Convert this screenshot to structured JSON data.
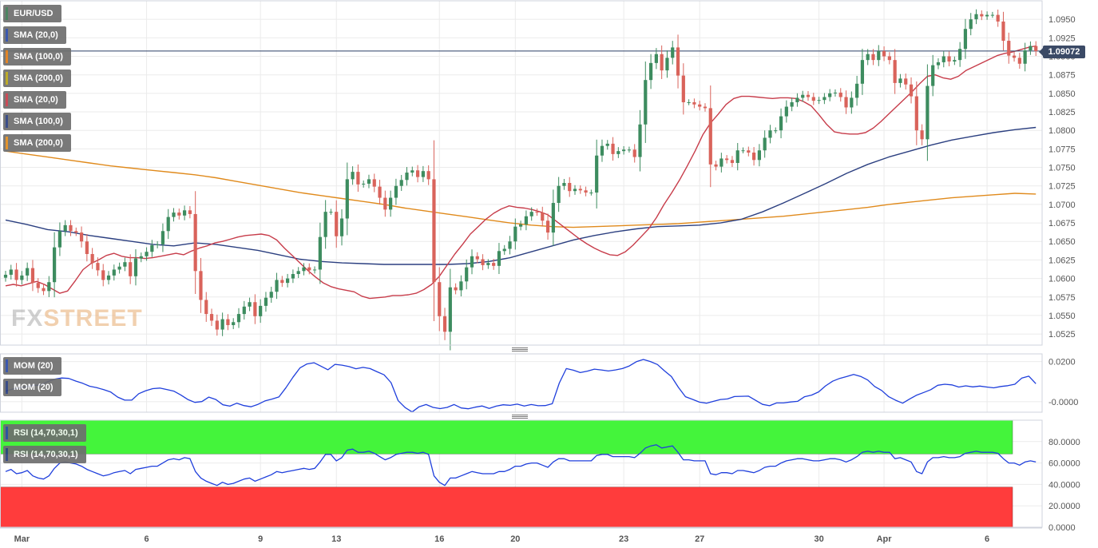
{
  "chart_data": {
    "type": "candlestick",
    "instrument": "EUR/USD",
    "last_price": "1.09072",
    "watermark": "FXSTREET",
    "x_tick_labels": [
      {
        "i": 3,
        "label": "Mar"
      },
      {
        "i": 26,
        "label": "6"
      },
      {
        "i": 47,
        "label": "9"
      },
      {
        "i": 61,
        "label": "13"
      },
      {
        "i": 80,
        "label": "16"
      },
      {
        "i": 94,
        "label": "20"
      },
      {
        "i": 114,
        "label": "23"
      },
      {
        "i": 128,
        "label": "27"
      },
      {
        "i": 150,
        "label": "30"
      },
      {
        "i": 162,
        "label": "Apr"
      },
      {
        "i": 181,
        "label": "6"
      }
    ],
    "price_panel": {
      "ylim": [
        1.051,
        1.0975
      ],
      "y_ticks": [
        "1.0525",
        "1.0550",
        "1.0575",
        "1.0600",
        "1.0625",
        "1.0650",
        "1.0675",
        "1.0700",
        "1.0725",
        "1.0750",
        "1.0775",
        "1.0800",
        "1.0825",
        "1.0850",
        "1.0875",
        "1.0900",
        "1.0925",
        "1.0950"
      ],
      "legend": [
        {
          "label": "EUR/USD",
          "color": "#3d7a55"
        },
        {
          "label": "SMA (20,0)",
          "color": "#2b4aa8"
        },
        {
          "label": "SMA (100,0)",
          "color": "#e07b17"
        },
        {
          "label": "SMA (200,0)",
          "color": "#b8a317"
        },
        {
          "label": "SMA (20,0)",
          "color": "#c73c4a"
        },
        {
          "label": "SMA (100,0)",
          "color": "#2b3f80"
        },
        {
          "label": "SMA (200,0)",
          "color": "#e08a1c"
        }
      ],
      "ohlc_close": [
        1.0605,
        1.0612,
        1.0598,
        1.0604,
        1.0614,
        1.0594,
        1.0587,
        1.0583,
        1.0595,
        1.0642,
        1.0664,
        1.0672,
        1.0664,
        1.0662,
        1.065,
        1.0633,
        1.0621,
        1.0611,
        1.0598,
        1.0604,
        1.0612,
        1.0616,
        1.0622,
        1.0603,
        1.0627,
        1.063,
        1.0636,
        1.0645,
        1.0646,
        1.0664,
        1.0683,
        1.0689,
        1.0685,
        1.0692,
        1.0687,
        1.061,
        1.0571,
        1.0552,
        1.0543,
        1.0531,
        1.0545,
        1.0537,
        1.0541,
        1.0552,
        1.0562,
        1.0568,
        1.0549,
        1.0563,
        1.0574,
        1.0582,
        1.0598,
        1.0594,
        1.06,
        1.0606,
        1.061,
        1.0615,
        1.0611,
        1.0612,
        1.0656,
        1.069,
        1.069,
        1.0657,
        1.0681,
        1.0734,
        1.0744,
        1.0727,
        1.0728,
        1.0734,
        1.0724,
        1.0709,
        1.0693,
        1.0709,
        1.0725,
        1.0733,
        1.0743,
        1.0746,
        1.0737,
        1.0745,
        1.0734,
        1.0595,
        1.0549,
        1.0528,
        1.0588,
        1.0584,
        1.0596,
        1.0615,
        1.063,
        1.0626,
        1.0618,
        1.0621,
        1.0617,
        1.0637,
        1.064,
        1.065,
        1.067,
        1.0673,
        1.0684,
        1.069,
        1.0689,
        1.0678,
        1.0662,
        1.0702,
        1.0725,
        1.0729,
        1.0718,
        1.0721,
        1.0719,
        1.0716,
        1.0716,
        1.0766,
        1.0779,
        1.0782,
        1.0768,
        1.0772,
        1.0774,
        1.0774,
        1.0764,
        1.0808,
        1.0868,
        1.0891,
        1.0903,
        1.0881,
        1.0898,
        1.0912,
        1.0874,
        1.0838,
        1.0838,
        1.0835,
        1.0832,
        1.083,
        1.0754,
        1.0751,
        1.0762,
        1.076,
        1.0756,
        1.0773,
        1.0773,
        1.077,
        1.076,
        1.0773,
        1.079,
        1.08,
        1.08,
        1.0819,
        1.0832,
        1.0838,
        1.0844,
        1.0848,
        1.0845,
        1.084,
        1.0841,
        1.0845,
        1.085,
        1.0851,
        1.0845,
        1.0831,
        1.0844,
        1.0863,
        1.0895,
        1.0903,
        1.0895,
        1.0907,
        1.09,
        1.0895,
        1.0864,
        1.087,
        1.0862,
        1.0846,
        1.08,
        1.0788,
        1.086,
        1.0888,
        1.0892,
        1.09,
        1.0893,
        1.0895,
        1.091,
        1.0937,
        1.095,
        1.0957,
        1.0954,
        1.0956,
        1.0956,
        1.0947,
        1.0921,
        1.0901,
        1.0898,
        1.089,
        1.0908,
        1.0914,
        1.0907
      ],
      "sma20": [
        1.059,
        1.0592,
        1.059,
        1.0593,
        1.0596,
        1.0592,
        1.0586,
        1.058,
        1.0583,
        1.0597,
        1.0612,
        1.062,
        1.0625,
        1.0631,
        1.0634,
        1.063,
        1.0628,
        1.0628,
        1.0627,
        1.0628,
        1.063,
        1.0632,
        1.0634,
        1.0632,
        1.0637,
        1.0641,
        1.0644,
        1.0648,
        1.065,
        1.0653,
        1.0656,
        1.0658,
        1.0659,
        1.066,
        1.0658,
        1.0652,
        1.0641,
        1.0631,
        1.0621,
        1.0611,
        1.0602,
        1.0594,
        1.0589,
        1.0586,
        1.0584,
        1.0582,
        1.0576,
        1.0573,
        1.0574,
        1.0575,
        1.0577,
        1.0577,
        1.0578,
        1.058,
        1.0585,
        1.0592,
        1.0603,
        1.0618,
        1.0633,
        1.0646,
        1.066,
        1.067,
        1.068,
        1.0688,
        1.0694,
        1.0698,
        1.0696,
        1.0695,
        1.0693,
        1.069,
        1.0686,
        1.0678,
        1.067,
        1.0662,
        1.0654,
        1.0647,
        1.0641,
        1.0636,
        1.0632,
        1.0631,
        1.0636,
        1.0645,
        1.0656,
        1.0667,
        1.0682,
        1.07,
        1.0716,
        1.0733,
        1.0752,
        1.0772,
        1.0794,
        1.081,
        1.0822,
        1.0835,
        1.0843,
        1.0846,
        1.0846,
        1.0845,
        1.0844,
        1.0843,
        1.0844,
        1.0844,
        1.0843,
        1.0839,
        1.0833,
        1.0821,
        1.0808,
        1.0798,
        1.0796,
        1.0795,
        1.0795,
        1.0797,
        1.0803,
        1.0812,
        1.0822,
        1.0832,
        1.0842,
        1.0852,
        1.0863,
        1.0873,
        1.0875,
        1.0871,
        1.0869,
        1.0873,
        1.0881,
        1.0886,
        1.0891,
        1.0896,
        1.0901,
        1.0904,
        1.0906,
        1.0909,
        1.0912,
        1.0914
      ],
      "sma20_x0": 0,
      "sma100": [
        1.0679,
        1.0673,
        1.0666,
        1.0663,
        1.0658,
        1.0654,
        1.065,
        1.0646,
        1.0644,
        1.0648,
        1.0646,
        1.0642,
        1.0638,
        1.0632,
        1.0626,
        1.0623,
        1.0621,
        1.062,
        1.0619,
        1.0619,
        1.0619,
        1.0619,
        1.062,
        1.0623,
        1.0628,
        1.0636,
        1.0644,
        1.0652,
        1.0658,
        1.0663,
        1.0667,
        1.067,
        1.0671,
        1.0672,
        1.0675,
        1.068,
        1.069,
        1.0702,
        1.0715,
        1.0728,
        1.0742,
        1.0754,
        1.0764,
        1.0772,
        1.078,
        1.0787,
        1.0792,
        1.0797,
        1.0801,
        1.0804
      ],
      "sma200": [
        1.0772,
        1.0768,
        1.0764,
        1.076,
        1.0756,
        1.0752,
        1.0749,
        1.0746,
        1.0743,
        1.074,
        1.0736,
        1.0731,
        1.0726,
        1.0721,
        1.0716,
        1.0712,
        1.0708,
        1.0704,
        1.07,
        1.0695,
        1.0691,
        1.0687,
        1.0683,
        1.0679,
        1.0675,
        1.0672,
        1.067,
        1.0669,
        1.067,
        1.0671,
        1.0672,
        1.0673,
        1.0674,
        1.0676,
        1.0678,
        1.068,
        1.0682,
        1.0684,
        1.0687,
        1.069,
        1.0693,
        1.0696,
        1.07,
        1.0703,
        1.0706,
        1.0709,
        1.0711,
        1.0713,
        1.0715,
        1.0714
      ]
    },
    "mom_panel": {
      "ylim": [
        -0.0052,
        0.0238
      ],
      "y_ticks": [
        "0.0200",
        "-0.0000"
      ],
      "legend": [
        {
          "label": "MOM (20)",
          "color": "#2b4aa8"
        },
        {
          "label": "MOM (20)",
          "color": "#2b3f80"
        }
      ],
      "values": [
        0.0052,
        0.0063,
        0.007,
        0.0075,
        0.0082,
        0.0082,
        0.01,
        0.0112,
        0.0118,
        0.0116,
        0.0103,
        0.0092,
        0.0077,
        0.007,
        0.006,
        0.0048,
        0.0023,
        0.0008,
        0.0008,
        0.004,
        0.0055,
        0.0065,
        0.0068,
        0.0061,
        0.0053,
        0.0034,
        0.0011,
        -0.0003,
        0.0001,
        0.0023,
        0.0011,
        -0.0015,
        -0.0022,
        -0.0007,
        -0.0019,
        -0.0025,
        -0.0013,
        0.0004,
        0.0013,
        0.0024,
        0.007,
        0.0122,
        0.0168,
        0.0188,
        0.0194,
        0.0177,
        0.0159,
        0.0186,
        0.0182,
        0.0175,
        0.0164,
        0.0171,
        0.0165,
        0.0149,
        0.0134,
        0.0095,
        0.0006,
        -0.0029,
        -0.0051,
        -0.0025,
        -0.0014,
        -0.0028,
        -0.0034,
        -0.0028,
        -0.0014,
        -0.0031,
        -0.0035,
        -0.0027,
        -0.0021,
        -0.0033,
        -0.0022,
        -0.0015,
        -0.0018,
        -0.0012,
        -0.0021,
        -0.0014,
        -0.002,
        -0.0019,
        -0.001,
        0.0093,
        0.0165,
        0.0157,
        0.0145,
        0.0152,
        0.0162,
        0.0158,
        0.0153,
        0.0158,
        0.0165,
        0.0178,
        0.0199,
        0.021,
        0.02,
        0.0185,
        0.0154,
        0.0125,
        0.0071,
        0.0025,
        0.0012,
        -0.0002,
        -0.0007,
        0.0002,
        0.0011,
        0.0014,
        0.0026,
        0.0027,
        0.0028,
        0.0007,
        -0.0013,
        -0.002,
        -0.0006,
        -0.0006,
        -0.0001,
        0.0002,
        0.0025,
        0.0033,
        0.0049,
        0.0079,
        0.0102,
        0.0116,
        0.0125,
        0.0136,
        0.0126,
        0.0108,
        0.0076,
        0.0056,
        0.0025,
        0.0007,
        -0.0007,
        0.0014,
        0.0033,
        0.0046,
        0.006,
        0.0082,
        0.0087,
        0.0084,
        0.0073,
        0.0079,
        0.0074,
        0.0078,
        0.0073,
        0.0069,
        0.0076,
        0.008,
        0.0087,
        0.0118,
        0.0127,
        0.009
      ]
    },
    "rsi_panel": {
      "ylim": [
        0,
        100
      ],
      "y_ticks": [
        "0.0000",
        "20.0000",
        "40.0000",
        "60.0000",
        "80.0000"
      ],
      "overbought": 70,
      "oversold": 30,
      "legend": [
        {
          "label": "RSI (14,70,30,1)",
          "color": "#2b4aa8"
        },
        {
          "label": "RSI (14,70,30,1)",
          "color": "#2b3f80"
        }
      ],
      "values": [
        52,
        54,
        50,
        51,
        53,
        48,
        46,
        45,
        48,
        55,
        60,
        61,
        60,
        59,
        57,
        54,
        52,
        50,
        48,
        49,
        51,
        52,
        53,
        50,
        54,
        55,
        56,
        57,
        57,
        60,
        63,
        64,
        63,
        65,
        64,
        52,
        46,
        43,
        41,
        39,
        42,
        40,
        41,
        43,
        45,
        46,
        43,
        45,
        47,
        49,
        52,
        51,
        52,
        53,
        54,
        55,
        54,
        55,
        61,
        68,
        68,
        62,
        65,
        72,
        73,
        70,
        70,
        71,
        69,
        66,
        63,
        65,
        68,
        69,
        70,
        70,
        69,
        70,
        68,
        48,
        42,
        39,
        46,
        46,
        48,
        50,
        52,
        51,
        50,
        50,
        50,
        52,
        52,
        54,
        57,
        57,
        59,
        60,
        60,
        58,
        56,
        61,
        64,
        64,
        62,
        62,
        62,
        62,
        62,
        67,
        68,
        68,
        66,
        66,
        66,
        66,
        65,
        69,
        74,
        76,
        77,
        74,
        75,
        76,
        70,
        63,
        63,
        62,
        62,
        62,
        50,
        49,
        51,
        51,
        50,
        53,
        53,
        52,
        51,
        53,
        56,
        57,
        57,
        60,
        62,
        63,
        64,
        64,
        63,
        62,
        62,
        63,
        64,
        64,
        63,
        61,
        63,
        66,
        70,
        71,
        70,
        71,
        70,
        70,
        64,
        65,
        63,
        61,
        52,
        50,
        61,
        65,
        65,
        66,
        65,
        65,
        66,
        69,
        70,
        71,
        70,
        70,
        70,
        69,
        64,
        60,
        60,
        58,
        61,
        62,
        61
      ]
    }
  }
}
